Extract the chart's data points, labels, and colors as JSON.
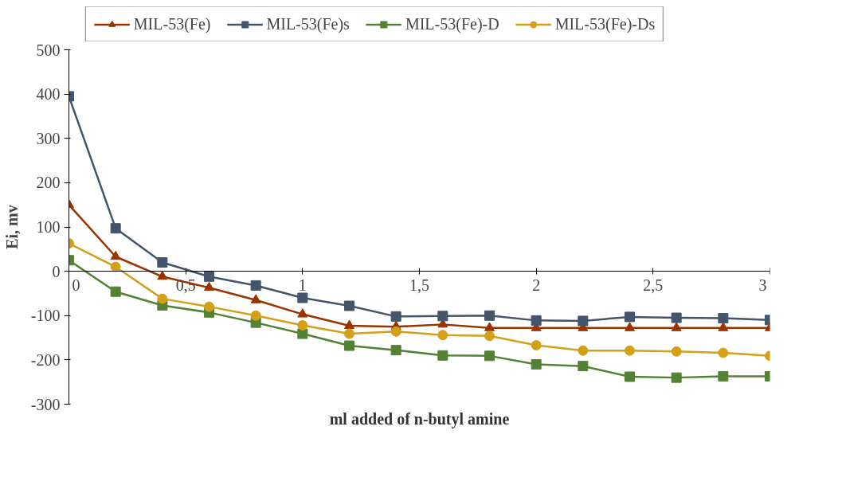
{
  "chart_data": {
    "type": "line",
    "xlabel": "ml added of n-butyl amine",
    "ylabel": "Ei, mv",
    "x": [
      0,
      0.2,
      0.4,
      0.6,
      0.8,
      1.0,
      1.2,
      1.4,
      1.6,
      1.8,
      2.0,
      2.2,
      2.4,
      2.6,
      2.8,
      3.0
    ],
    "series": [
      {
        "name": "MIL-53(Fe)",
        "color": "#993300",
        "marker": "triangle",
        "values": [
          150,
          33,
          -12,
          -37,
          -65,
          -97,
          -123,
          -125,
          -120,
          -128,
          -128,
          -128,
          -128,
          -128,
          -128,
          -128
        ]
      },
      {
        "name": "MIL-53(Fe)s",
        "color": "#44546a",
        "marker": "square",
        "values": [
          395,
          97,
          20,
          -12,
          -32,
          -60,
          -78,
          -102,
          -101,
          -100,
          -111,
          -112,
          -103,
          -105,
          -106,
          -110
        ]
      },
      {
        "name": "MIL-53(Fe)-D",
        "color": "#548235",
        "marker": "square",
        "values": [
          25,
          -46,
          -77,
          -93,
          -116,
          -141,
          -168,
          -178,
          -190,
          -191,
          -210,
          -214,
          -238,
          -240,
          -237,
          -237
        ]
      },
      {
        "name": "MIL-53(Fe)-Ds",
        "color": "#d4a017",
        "marker": "circle",
        "values": [
          63,
          10,
          -62,
          -80,
          -100,
          -122,
          -141,
          -136,
          -144,
          -146,
          -167,
          -179,
          -179,
          -181,
          -184,
          -191
        ]
      }
    ],
    "xlim": [
      0,
      3
    ],
    "ylim": [
      -300,
      500
    ],
    "xticks": [
      0,
      {
        "value": 0.5,
        "label": "0,5"
      },
      1,
      {
        "value": 1.5,
        "label": "1,5"
      },
      2,
      {
        "value": 2.5,
        "label": "2,5"
      },
      3
    ],
    "yticks": [
      -300,
      -200,
      -100,
      0,
      100,
      200,
      300,
      400,
      500
    ],
    "grid": false,
    "legend": "top",
    "line_style": "solid"
  }
}
